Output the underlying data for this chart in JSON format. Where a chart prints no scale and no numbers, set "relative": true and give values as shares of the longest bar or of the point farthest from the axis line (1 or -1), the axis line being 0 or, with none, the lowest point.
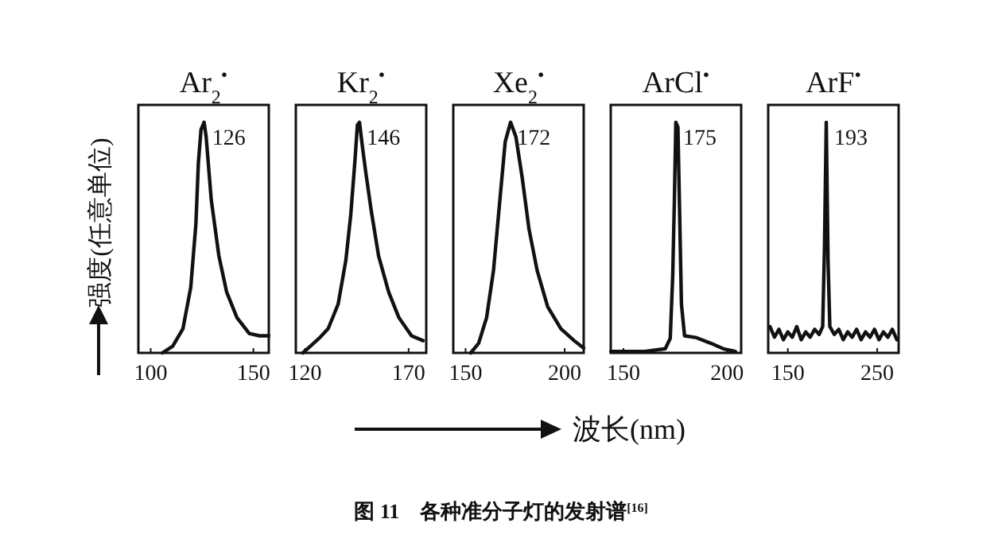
{
  "chart_data": [
    {
      "type": "line",
      "title": "Ar$_{2}$$^{•}$",
      "ylabel": "强度(任意单位)",
      "relative": true,
      "tick_labels": "x",
      "xlim": [
        94,
        157.5
      ],
      "xticks": [
        100,
        150
      ],
      "x": [
        105.7,
        110.7,
        115.7,
        119.5,
        122,
        123.2,
        124.5,
        126,
        127,
        129.5,
        133.2,
        137,
        142,
        148,
        153,
        157.5
      ],
      "values": [
        0,
        0.029,
        0.105,
        0.284,
        0.558,
        0.821,
        0.968,
        1,
        0.937,
        0.663,
        0.421,
        0.263,
        0.153,
        0.084,
        0.074,
        0.074
      ],
      "annotations": [
        {
          "text": "126",
          "x": 126,
          "y": 1
        }
      ]
    },
    {
      "type": "line",
      "title": "Kr$_{2}$$^{•}$",
      "relative": true,
      "tick_labels": "x",
      "xlim": [
        115.6,
        178.5
      ],
      "xticks": [
        120,
        170
      ],
      "x": [
        119,
        122.6,
        126.8,
        131.2,
        136,
        139.7,
        142.1,
        144.1,
        145.3,
        146.3,
        147.7,
        149.4,
        151.9,
        155.5,
        160.4,
        165.3,
        171.4,
        177
      ],
      "values": [
        0,
        0.029,
        0.063,
        0.105,
        0.211,
        0.4,
        0.6,
        0.832,
        0.989,
        1,
        0.895,
        0.779,
        0.621,
        0.421,
        0.263,
        0.153,
        0.074,
        0.053
      ],
      "annotations": [
        {
          "text": "146",
          "x": 146,
          "y": 1
        }
      ]
    },
    {
      "type": "line",
      "title": "Xe$_{2}$$^{•}$",
      "xlabel": "波长(nm)",
      "relative": true,
      "tick_labels": "x",
      "xlim": [
        143.8,
        209.6
      ],
      "xticks": [
        150,
        200
      ],
      "x": [
        152.6,
        156.6,
        160.6,
        164.1,
        167.3,
        170,
        172.7,
        175.4,
        178.6,
        182,
        186.1,
        191.4,
        198.1,
        204.8,
        209.6
      ],
      "values": [
        0,
        0.042,
        0.153,
        0.358,
        0.663,
        0.916,
        1,
        0.937,
        0.758,
        0.537,
        0.358,
        0.2,
        0.105,
        0.053,
        0.021
      ],
      "annotations": [
        {
          "text": "172",
          "x": 172,
          "y": 1
        },
        "图 11　各种准分子灯的发射谱$^{[16]}$"
      ]
    },
    {
      "type": "line",
      "title": "ArCl$^{•}$",
      "relative": true,
      "tick_labels": "x",
      "xlim": [
        143.9,
        206.8
      ],
      "xticks": [
        150,
        200
      ],
      "x": [
        144,
        160.4,
        170.2,
        172.6,
        173.8,
        174.6,
        175.3,
        176.3,
        177,
        178,
        179.5,
        184.8,
        192.1,
        198.2,
        204
      ],
      "values": [
        0.006,
        0.006,
        0.018,
        0.063,
        0.337,
        0.663,
        1,
        0.979,
        0.663,
        0.211,
        0.074,
        0.067,
        0.042,
        0.018,
        0.006
      ],
      "annotations": [
        {
          "text": "175",
          "x": 175,
          "y": 1
        }
      ]
    },
    {
      "type": "line",
      "title": "ArF$^{•}$",
      "relative": true,
      "tick_labels": "x",
      "xlim": [
        128,
        274
      ],
      "xticks": [
        150,
        250
      ],
      "x": [
        130,
        135,
        140,
        145,
        150,
        155,
        160,
        165,
        170,
        175,
        180,
        185,
        189,
        191,
        193,
        195,
        197,
        202,
        207,
        212,
        217,
        222,
        227,
        232,
        237,
        242,
        247,
        252,
        257,
        262,
        267,
        272
      ],
      "values": [
        0.114,
        0.068,
        0.102,
        0.057,
        0.091,
        0.068,
        0.114,
        0.057,
        0.091,
        0.068,
        0.102,
        0.08,
        0.114,
        0.455,
        1,
        0.398,
        0.114,
        0.08,
        0.102,
        0.057,
        0.091,
        0.068,
        0.102,
        0.057,
        0.091,
        0.068,
        0.102,
        0.057,
        0.091,
        0.068,
        0.102,
        0.057
      ],
      "annotations": [
        {
          "text": "193",
          "x": 193,
          "y": 1
        }
      ]
    }
  ]
}
